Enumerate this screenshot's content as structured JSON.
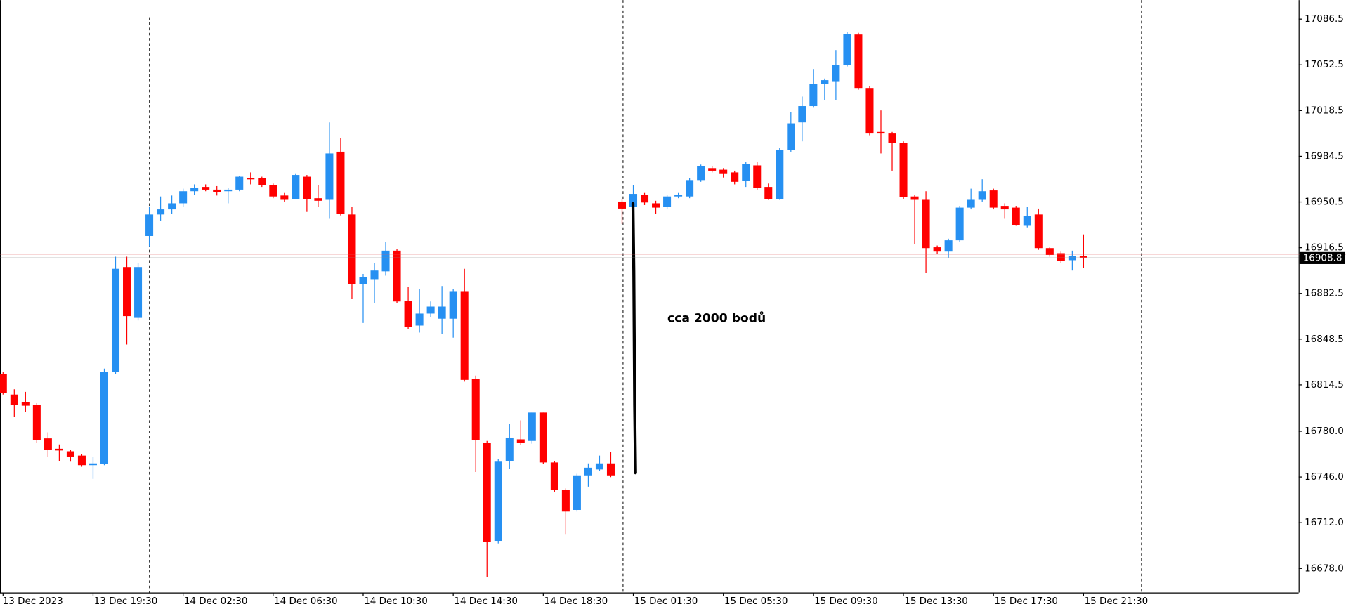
{
  "chart_data": {
    "type": "candlestick",
    "annotation": "cca 2000 bodů",
    "categories": [
      "13 Dec 2023",
      null,
      null,
      null,
      null,
      null,
      null,
      null,
      "13 Dec 19:30",
      null,
      null,
      null,
      null,
      null,
      null,
      null,
      "14 Dec 02:30",
      null,
      null,
      null,
      null,
      null,
      null,
      null,
      "14 Dec 06:30",
      null,
      null,
      null,
      null,
      null,
      null,
      null,
      "14 Dec 10:30",
      null,
      null,
      null,
      null,
      null,
      null,
      null,
      "14 Dec 14:30",
      null,
      null,
      null,
      null,
      null,
      null,
      null,
      "14 Dec 18:30",
      null,
      null,
      null,
      null,
      null,
      null,
      null,
      "15 Dec 01:30",
      null,
      null,
      null,
      null,
      null,
      null,
      null,
      "15 Dec 05:30",
      null,
      null,
      null,
      null,
      null,
      null,
      null,
      "15 Dec 09:30",
      null,
      null,
      null,
      null,
      null,
      null,
      null,
      "15 Dec 13:30",
      null,
      null,
      null,
      null,
      null,
      null,
      null,
      "15 Dec 17:30",
      null,
      null,
      null,
      null,
      null,
      null,
      null,
      "15 Dec 21:30"
    ],
    "open": [
      16822.7,
      16807.3,
      16801.6,
      16799.7,
      16774.7,
      16767.0,
      16765.1,
      16761.9,
      16754.8,
      16755.5,
      16824.0,
      16902.1,
      16864.3,
      16925.2,
      16941.2,
      16945.0,
      16949.5,
      16958.5,
      16961.7,
      16959.7,
      16958.5,
      16959.7,
      16968.1,
      16968.1,
      16962.9,
      16955.3,
      16952.7,
      16969.3,
      16953.3,
      16952.1,
      16987.9,
      16941.2,
      16889.3,
      16893.1,
      16898.9,
      16914.3,
      16877.1,
      16858.6,
      16867.5,
      16863.7,
      16863.7,
      16884.2,
      16818.9,
      16771.5,
      16698.5,
      16758.0,
      16774.0,
      16772.8,
      16793.9,
      16756.8,
      16736.3,
      16721.5,
      16747.2,
      16751.6,
      16756.1,
      16950.8,
      16946.9,
      16955.9,
      16949.5,
      16946.9,
      16954.6,
      16954.6,
      16966.8,
      16975.7,
      16974.5,
      16972.5,
      16966.1,
      16977.7,
      16961.7,
      16952.7,
      16989.2,
      17009.7,
      17021.8,
      17038.5,
      17039.8,
      17052.6,
      17075.0,
      17035.3,
      17002.6,
      17001.4,
      16994.3,
      16954.6,
      16952.1,
      16916.8,
      16913.6,
      16922.0,
      16946.3,
      16952.1,
      16959.1,
      16947.6,
      16946.3,
      16932.8,
      16941.2,
      16916.2,
      16912.4,
      16907.2,
      16910.4
    ],
    "high": [
      16824.0,
      16811.2,
      16809.3,
      16800.9,
      16779.2,
      16770.2,
      16766.4,
      16763.2,
      16761.2,
      16826.6,
      16909.8,
      16909.8,
      16905.3,
      16946.9,
      16954.6,
      16955.3,
      16960.4,
      16963.6,
      16963.6,
      16962.3,
      16961.0,
      16970.0,
      16972.5,
      16969.3,
      16964.2,
      16957.2,
      16971.3,
      16970.6,
      16962.9,
      17009.7,
      16998.2,
      16946.9,
      16897.0,
      16905.3,
      16920.7,
      16915.6,
      16887.4,
      16885.5,
      16876.5,
      16888.0,
      16885.5,
      16900.8,
      16821.4,
      16772.8,
      16759.3,
      16785.6,
      16788.1,
      16793.9,
      16793.9,
      16758.0,
      16737.5,
      16748.4,
      16756.1,
      16761.9,
      16764.4,
      16952.7,
      16962.9,
      16957.2,
      16951.4,
      16955.9,
      16957.2,
      16968.1,
      16978.3,
      16977.0,
      16975.7,
      16973.8,
      16980.2,
      16980.2,
      16964.2,
      16990.5,
      17017.4,
      17028.9,
      17049.4,
      17042.3,
      17063.5,
      17076.9,
      17076.3,
      17036.6,
      17018.6,
      17002.6,
      16995.6,
      16955.9,
      16958.5,
      16918.1,
      16923.2,
      16947.6,
      16960.4,
      16967.4,
      16960.4,
      16949.5,
      16947.6,
      16946.9,
      16945.6,
      16916.8,
      16913.6,
      16914.3,
      16926.4
    ],
    "low": [
      16807.3,
      16790.7,
      16794.5,
      16771.5,
      16761.2,
      16758.0,
      16757.4,
      16753.6,
      16744.6,
      16754.8,
      16822.7,
      16844.5,
      16862.4,
      16917.5,
      16936.7,
      16941.8,
      16946.9,
      16955.9,
      16958.5,
      16955.3,
      16949.5,
      16958.5,
      16963.6,
      16961.7,
      16953.3,
      16950.8,
      16952.7,
      16943.1,
      16946.9,
      16938.0,
      16940.5,
      16878.4,
      16860.5,
      16875.2,
      16895.7,
      16875.2,
      16856.0,
      16853.4,
      16865.0,
      16852.2,
      16849.6,
      16816.9,
      16749.7,
      16671.6,
      16696.6,
      16752.3,
      16769.6,
      16770.8,
      16755.5,
      16735.0,
      16703.6,
      16720.3,
      16738.8,
      16750.4,
      16745.9,
      16934.1,
      16944.4,
      16948.2,
      16941.8,
      16945.0,
      16953.3,
      16953.3,
      16965.5,
      16972.5,
      16968.7,
      16963.6,
      16961.7,
      16959.7,
      16952.1,
      16952.1,
      16987.9,
      16995.6,
      17020.6,
      17026.3,
      17026.3,
      17051.3,
      17034.0,
      17000.1,
      16986.6,
      16973.8,
      16952.7,
      16919.4,
      16897.6,
      16911.7,
      16909.1,
      16920.7,
      16945.0,
      16950.8,
      16945.0,
      16938.0,
      16932.8,
      16931.6,
      16914.9,
      16909.8,
      16905.3,
      16899.5,
      16901.5
    ],
    "close": [
      16808.6,
      16799.7,
      16799.0,
      16773.4,
      16766.4,
      16765.7,
      16761.2,
      16754.8,
      16756.1,
      16824.0,
      16900.8,
      16865.6,
      16902.1,
      16941.2,
      16945.0,
      16949.5,
      16958.5,
      16961.0,
      16959.7,
      16957.8,
      16959.7,
      16969.3,
      16967.4,
      16962.9,
      16954.6,
      16952.1,
      16970.6,
      16952.7,
      16951.4,
      16986.6,
      16941.8,
      16889.3,
      16894.4,
      16899.5,
      16914.3,
      16876.5,
      16857.3,
      16867.5,
      16872.7,
      16872.7,
      16884.2,
      16818.2,
      16773.4,
      16697.9,
      16757.4,
      16775.3,
      16771.5,
      16793.9,
      16756.8,
      16736.3,
      16720.3,
      16747.2,
      16752.9,
      16756.1,
      16747.2,
      16945.6,
      16956.5,
      16950.1,
      16946.3,
      16954.6,
      16955.9,
      16966.8,
      16977.0,
      16973.8,
      16971.3,
      16965.5,
      16978.9,
      16961.0,
      16952.7,
      16989.2,
      17009.0,
      17021.8,
      17038.5,
      17041.1,
      17052.6,
      17075.6,
      17035.3,
      17001.4,
      17001.4,
      16994.3,
      16954.0,
      16952.1,
      16916.2,
      16913.6,
      16922.0,
      16946.3,
      16952.1,
      16958.5,
      16946.3,
      16945.0,
      16933.5,
      16939.9,
      16916.2,
      16911.1,
      16906.6,
      16910.4,
      16909.1
    ],
    "up_color": "#2690f2",
    "down_color": "#ff0000",
    "last_price": 16908.8,
    "ask_price": 16911.8,
    "ylim": [
      16660.1,
      17100.6
    ],
    "yticks": [
      17086.5,
      17052.5,
      17018.5,
      16984.5,
      16950.5,
      16916.5,
      16882.5,
      16848.5,
      16814.5,
      {
        "value": 16780,
        "label": "16780.0"
      },
      {
        "value": 16746,
        "label": "16746.0"
      },
      {
        "value": 16712,
        "label": "16712.0"
      },
      {
        "value": 16678,
        "label": "16678.0"
      }
    ],
    "grid": false
  }
}
